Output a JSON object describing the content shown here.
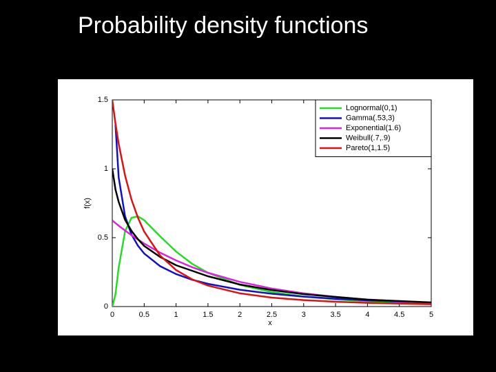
{
  "title": "Probability density functions",
  "chart_data": {
    "type": "line",
    "xlabel": "x",
    "ylabel": "f(x)",
    "x": [
      0,
      0.05,
      0.1,
      0.2,
      0.3,
      0.4,
      0.5,
      0.75,
      1,
      1.25,
      1.5,
      2,
      2.5,
      3,
      3.5,
      4,
      4.5,
      5
    ],
    "series": [
      {
        "name": "Lognormal(0,1)",
        "color": "#22dd22",
        "values": [
          0,
          0.09,
          0.282,
          0.546,
          0.644,
          0.655,
          0.627,
          0.51,
          0.399,
          0.311,
          0.245,
          0.157,
          0.105,
          0.073,
          0.052,
          0.038,
          0.029,
          0.022
        ]
      },
      {
        "name": "Gamma(.53,3)",
        "color": "#1010cc",
        "values": [
          null,
          1.32,
          0.938,
          0.656,
          0.524,
          0.443,
          0.385,
          0.293,
          0.236,
          0.195,
          0.165,
          0.122,
          0.093,
          0.072,
          0.057,
          0.045,
          0.036,
          0.029
        ]
      },
      {
        "name": "Exponential(1.6)",
        "color": "#dd22dd",
        "values": [
          0.625,
          0.606,
          0.587,
          0.552,
          0.518,
          0.487,
          0.457,
          0.391,
          0.335,
          0.286,
          0.245,
          0.179,
          0.131,
          0.096,
          0.07,
          0.051,
          0.038,
          0.027
        ]
      },
      {
        "name": "Weibull(.7,.9)",
        "color": "#000000",
        "values": [
          1.0,
          0.85,
          0.76,
          0.63,
          0.55,
          0.49,
          0.44,
          0.36,
          0.3,
          0.26,
          0.22,
          0.16,
          0.12,
          0.09,
          0.07,
          0.05,
          0.04,
          0.03
        ]
      },
      {
        "name": "Pareto(1,1.5)",
        "color": "#dd1111",
        "values": [
          1.5,
          1.328,
          1.182,
          0.951,
          0.778,
          0.647,
          0.544,
          0.37,
          0.265,
          0.198,
          0.152,
          0.096,
          0.065,
          0.047,
          0.035,
          0.027,
          0.021,
          0.017
        ]
      }
    ],
    "xlim": [
      0,
      5
    ],
    "xticks": [
      0,
      0.5,
      1,
      1.5,
      2,
      2.5,
      3,
      3.5,
      4,
      4.5,
      5
    ],
    "ylim": [
      0,
      1.5
    ],
    "yticks": [
      0,
      0.5,
      1,
      1.5
    ],
    "legend": "upper right"
  }
}
